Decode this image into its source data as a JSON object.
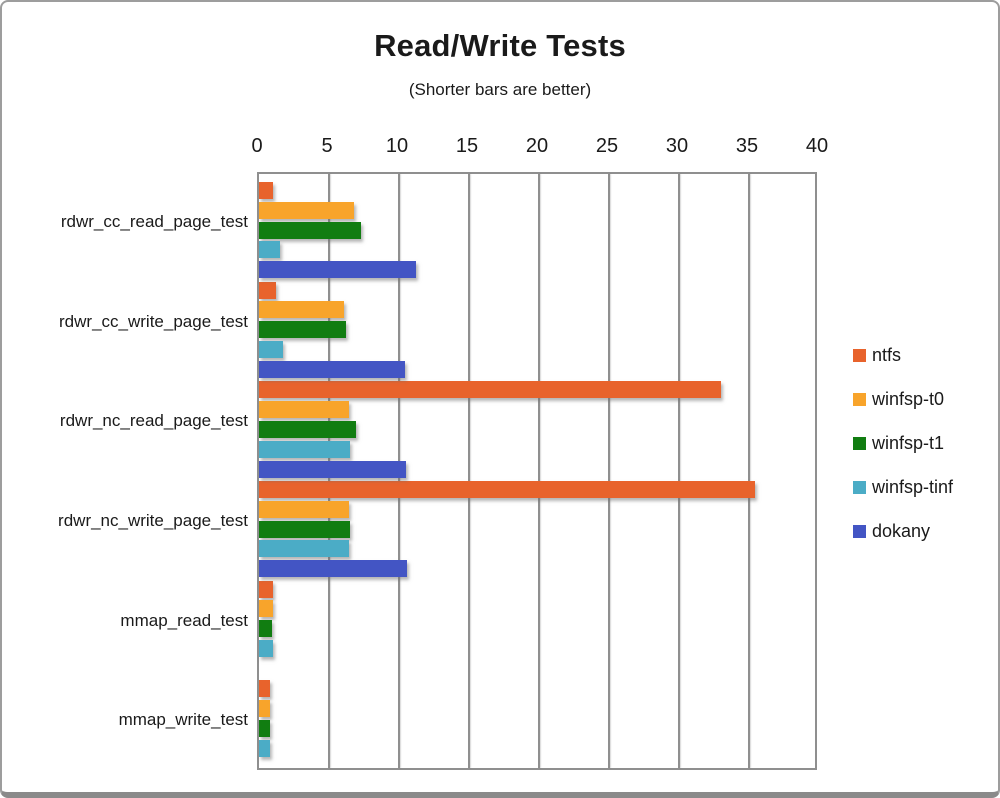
{
  "title": "Read/Write Tests",
  "subtitle": "(Shorter bars are better)",
  "chart_data": {
    "type": "bar",
    "orientation": "horizontal",
    "title": "Read/Write Tests",
    "subtitle": "(Shorter bars are better)",
    "categories": [
      "rdwr_cc_read_page_test",
      "rdwr_cc_write_page_test",
      "rdwr_nc_read_page_test",
      "rdwr_nc_write_page_test",
      "mmap_read_test",
      "mmap_write_test"
    ],
    "series": [
      {
        "name": "ntfs",
        "color": "#E8632C",
        "values": [
          1.0,
          1.2,
          33.0,
          35.4,
          1.0,
          0.8
        ]
      },
      {
        "name": "winfsp-t0",
        "color": "#F8A42B",
        "values": [
          6.8,
          6.1,
          6.4,
          6.4,
          1.0,
          0.8
        ]
      },
      {
        "name": "winfsp-t1",
        "color": "#117D11",
        "values": [
          7.3,
          6.2,
          6.9,
          6.5,
          0.9,
          0.8
        ]
      },
      {
        "name": "winfsp-tinf",
        "color": "#4BACC6",
        "values": [
          1.5,
          1.7,
          6.5,
          6.4,
          1.0,
          0.8
        ]
      },
      {
        "name": "dokany",
        "color": "#4355C4",
        "values": [
          11.2,
          10.4,
          10.5,
          10.6,
          0,
          0
        ]
      }
    ],
    "xlim": [
      0,
      40
    ],
    "xticks": [
      0,
      5,
      10,
      15,
      20,
      25,
      30,
      35,
      40
    ],
    "grid": true,
    "legend_position": "right",
    "axis_color": "#8f8f8f"
  }
}
